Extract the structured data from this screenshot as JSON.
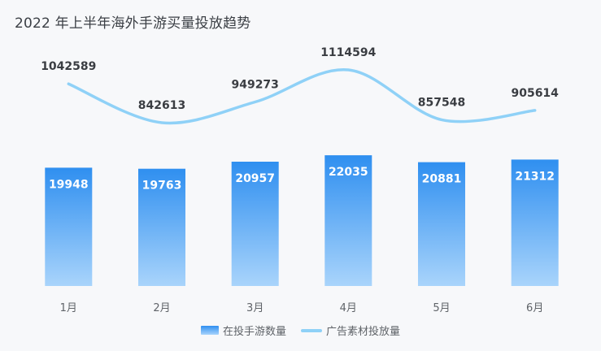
{
  "chart_data": {
    "type": "bar",
    "title": "2022 年上半年海外手游买量投放趋势",
    "categories": [
      "1月",
      "2月",
      "3月",
      "4月",
      "5月",
      "6月"
    ],
    "series": [
      {
        "name": "在投手游数量",
        "type": "bar",
        "values": [
          19948,
          19763,
          20957,
          22035,
          20881,
          21312
        ]
      },
      {
        "name": "广告素材投放量",
        "type": "line",
        "values": [
          1042589,
          842613,
          949273,
          1114594,
          857548,
          905614
        ]
      }
    ],
    "legend": "bottom-center",
    "grid": false
  },
  "colors": {
    "bar_top": "#2f8ff0",
    "bar_bottom": "#a9d4fb",
    "line": "#8fd1f7"
  }
}
